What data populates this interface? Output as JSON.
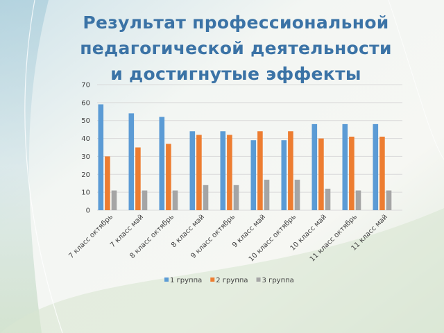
{
  "slide": {
    "title_lines": [
      "Результат профессиональной",
      "педагогической деятельности",
      "и достигнутые эффекты"
    ]
  },
  "colors": {
    "title": "#3b73a6",
    "series": [
      "#5b9bd5",
      "#ed7d31",
      "#a5a5a5"
    ],
    "grid": "#d9d9d9"
  },
  "chart_data": {
    "type": "bar",
    "categories": [
      "7 класс октябрь",
      "7 класс май",
      "8 класс октябрь",
      "8 класс май",
      "9 класс октябрь",
      "9 класс май",
      "10 класс октябрь",
      "10 класс май",
      "11 класс октябрь",
      "11 класс май"
    ],
    "series": [
      {
        "name": "1 группа",
        "values": [
          59,
          54,
          52,
          44,
          44,
          39,
          39,
          48,
          48,
          48
        ]
      },
      {
        "name": "2 группа",
        "values": [
          30,
          35,
          37,
          42,
          42,
          44,
          44,
          40,
          41,
          41
        ]
      },
      {
        "name": "3 группа",
        "values": [
          11,
          11,
          11,
          14,
          14,
          17,
          17,
          12,
          11,
          11
        ]
      }
    ],
    "ylim": [
      0,
      70
    ],
    "yticks": [
      0,
      10,
      20,
      30,
      40,
      50,
      60,
      70
    ],
    "grid": true,
    "legend": "bottom",
    "title": "",
    "xlabel": "",
    "ylabel": ""
  }
}
